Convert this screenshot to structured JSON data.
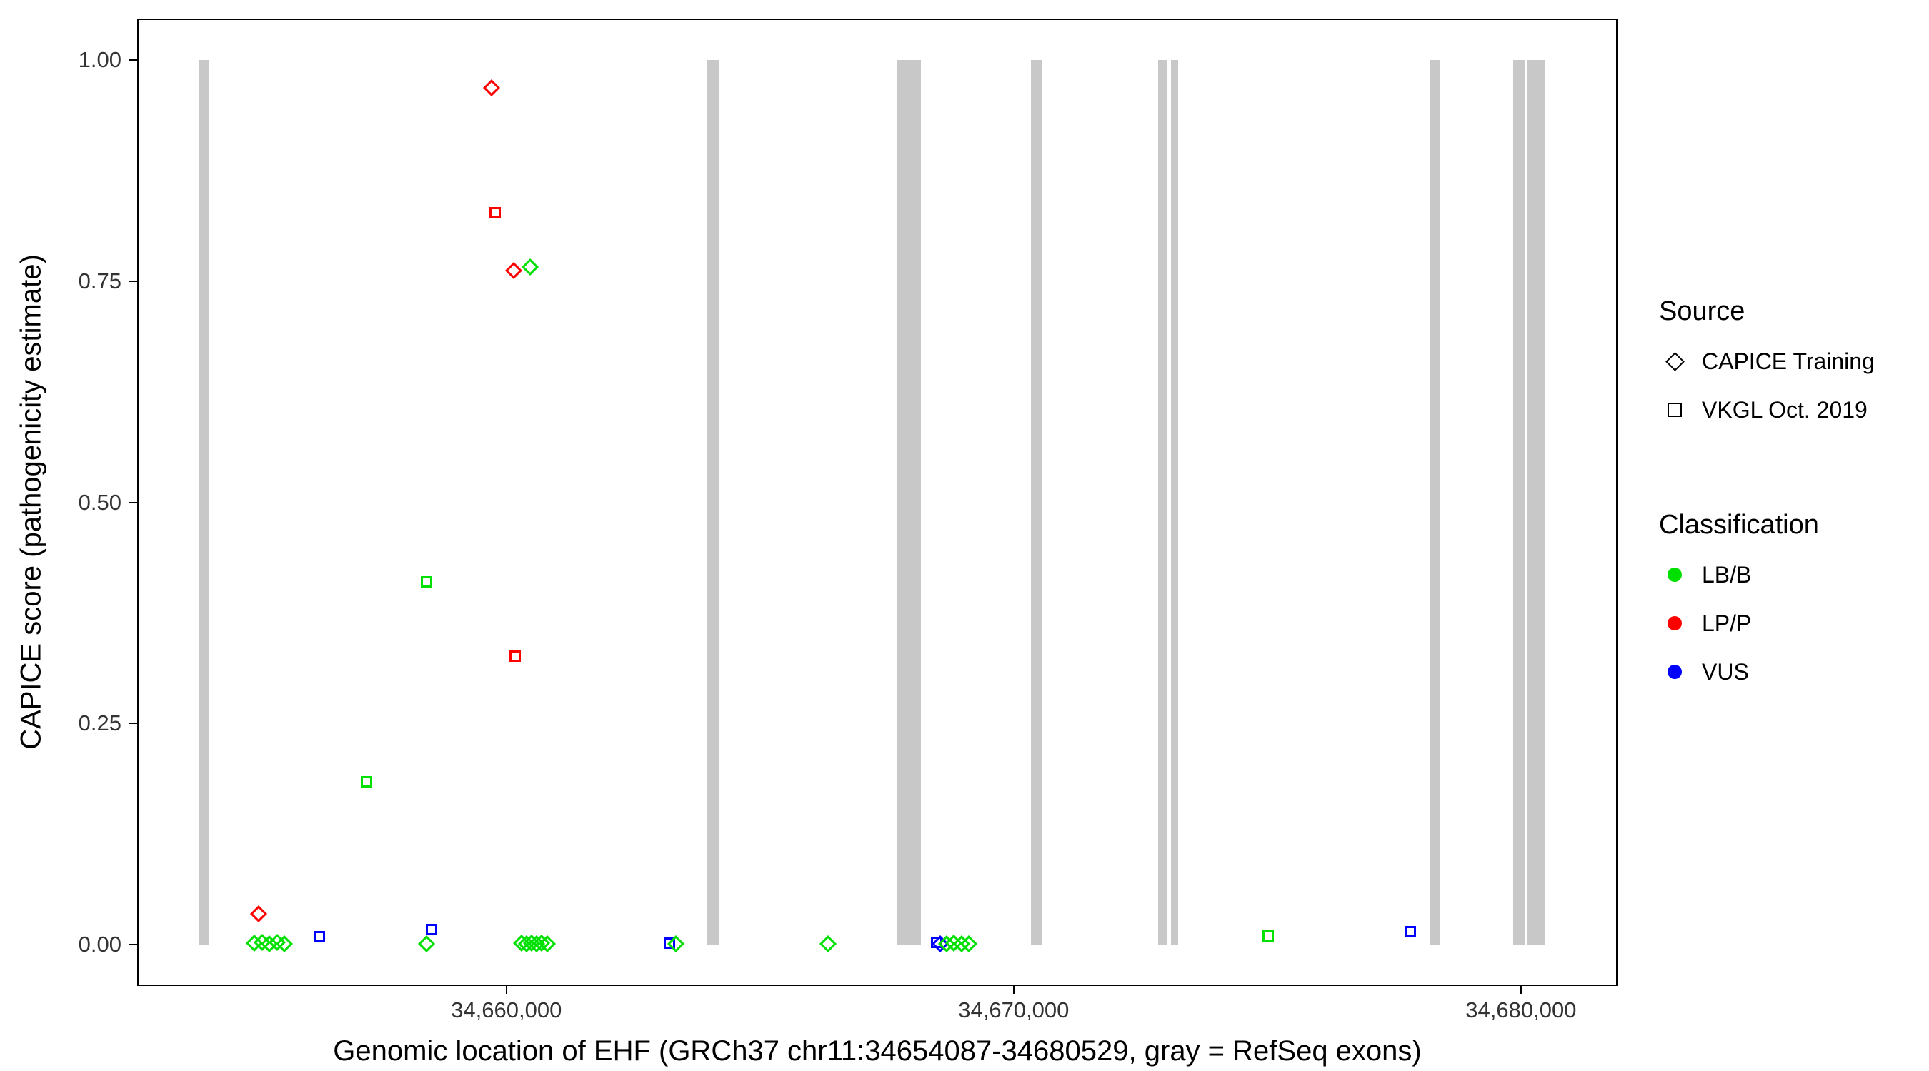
{
  "chart_data": {
    "type": "scatter",
    "title": "",
    "xlabel": "Genomic location of EHF (GRCh37 chr11:34654087-34680529, gray = RefSeq exons)",
    "ylabel": "CAPICE score (pathogenicity estimate)",
    "xlim": [
      34652750,
      34681875
    ],
    "ylim": [
      -0.045,
      1.045
    ],
    "grid": "off",
    "legend_position": "right",
    "x_ticks": [
      {
        "value": 34660000,
        "label": "34,660,000"
      },
      {
        "value": 34670000,
        "label": "34,670,000"
      },
      {
        "value": 34680000,
        "label": "34,680,000"
      }
    ],
    "y_ticks": [
      {
        "value": 0.0,
        "label": "0.00"
      },
      {
        "value": 0.25,
        "label": "0.25"
      },
      {
        "value": 0.5,
        "label": "0.50"
      },
      {
        "value": 0.75,
        "label": "0.75"
      },
      {
        "value": 1.0,
        "label": "1.00"
      }
    ],
    "exon_color": "#C8C8C8",
    "exons": [
      [
        34653930,
        34654130
      ],
      [
        34663955,
        34664200
      ],
      [
        34667700,
        34668170
      ],
      [
        34670340,
        34670545
      ],
      [
        34672850,
        34673025
      ],
      [
        34673095,
        34673245
      ],
      [
        34678205,
        34678405
      ],
      [
        34679850,
        34680075
      ],
      [
        34680125,
        34680470
      ]
    ],
    "legend": {
      "source": {
        "title": "Source",
        "items": [
          {
            "label": "CAPICE Training",
            "shape": "diamond"
          },
          {
            "label": "VKGL Oct. 2019",
            "shape": "square"
          }
        ]
      },
      "classification": {
        "title": "Classification",
        "items": [
          {
            "label": "LB/B",
            "color": "#00E000"
          },
          {
            "label": "LP/P",
            "color": "#FF0000"
          },
          {
            "label": "VUS",
            "color": "#0000FF"
          }
        ]
      }
    },
    "shape_by_source": {
      "CAPICE Training": "diamond",
      "VKGL Oct. 2019": "square"
    },
    "color_by_classification": {
      "LB/B": "#00E000",
      "LP/P": "#FF0000",
      "VUS": "#0000FF"
    },
    "points": [
      {
        "x": 34659705,
        "y": 0.968,
        "source": "CAPICE Training",
        "classification": "LP/P"
      },
      {
        "x": 34659780,
        "y": 0.827,
        "source": "VKGL Oct. 2019",
        "classification": "LP/P"
      },
      {
        "x": 34660147,
        "y": 0.762,
        "source": "CAPICE Training",
        "classification": "LP/P"
      },
      {
        "x": 34660467,
        "y": 0.766,
        "source": "CAPICE Training",
        "classification": "LB/B"
      },
      {
        "x": 34658428,
        "y": 0.41,
        "source": "VKGL Oct. 2019",
        "classification": "LB/B"
      },
      {
        "x": 34660172,
        "y": 0.326,
        "source": "VKGL Oct. 2019",
        "classification": "LP/P"
      },
      {
        "x": 34657248,
        "y": 0.184,
        "source": "VKGL Oct. 2019",
        "classification": "LB/B"
      },
      {
        "x": 34655110,
        "y": 0.035,
        "source": "CAPICE Training",
        "classification": "LP/P"
      },
      {
        "x": 34655035,
        "y": 0.002,
        "source": "CAPICE Training",
        "classification": "LB/B"
      },
      {
        "x": 34655185,
        "y": 0.003,
        "source": "CAPICE Training",
        "classification": "LB/B"
      },
      {
        "x": 34655330,
        "y": 0.001,
        "source": "CAPICE Training",
        "classification": "LB/B"
      },
      {
        "x": 34655480,
        "y": 0.003,
        "source": "CAPICE Training",
        "classification": "LB/B"
      },
      {
        "x": 34655625,
        "y": 0.001,
        "source": "CAPICE Training",
        "classification": "LB/B"
      },
      {
        "x": 34656315,
        "y": 0.009,
        "source": "VKGL Oct. 2019",
        "classification": "VUS"
      },
      {
        "x": 34658525,
        "y": 0.017,
        "source": "VKGL Oct. 2019",
        "classification": "VUS"
      },
      {
        "x": 34658430,
        "y": 0.001,
        "source": "CAPICE Training",
        "classification": "LB/B"
      },
      {
        "x": 34660295,
        "y": 0.002,
        "source": "CAPICE Training",
        "classification": "LB/B"
      },
      {
        "x": 34660395,
        "y": 0.001,
        "source": "CAPICE Training",
        "classification": "LB/B"
      },
      {
        "x": 34660490,
        "y": 0.002,
        "source": "CAPICE Training",
        "classification": "LB/B"
      },
      {
        "x": 34660590,
        "y": 0.001,
        "source": "CAPICE Training",
        "classification": "LB/B"
      },
      {
        "x": 34660690,
        "y": 0.002,
        "source": "CAPICE Training",
        "classification": "LB/B"
      },
      {
        "x": 34660810,
        "y": 0.001,
        "source": "CAPICE Training",
        "classification": "LB/B"
      },
      {
        "x": 34663220,
        "y": 0.002,
        "source": "VKGL Oct. 2019",
        "classification": "VUS"
      },
      {
        "x": 34663340,
        "y": 0.001,
        "source": "CAPICE Training",
        "classification": "LB/B"
      },
      {
        "x": 34666340,
        "y": 0.001,
        "source": "CAPICE Training",
        "classification": "LB/B"
      },
      {
        "x": 34668475,
        "y": 0.003,
        "source": "VKGL Oct. 2019",
        "classification": "VUS"
      },
      {
        "x": 34668550,
        "y": 0.001,
        "source": "CAPICE Training",
        "classification": "VUS"
      },
      {
        "x": 34668675,
        "y": 0.001,
        "source": "CAPICE Training",
        "classification": "LB/B"
      },
      {
        "x": 34668820,
        "y": 0.002,
        "source": "CAPICE Training",
        "classification": "LB/B"
      },
      {
        "x": 34668970,
        "y": 0.001,
        "source": "CAPICE Training",
        "classification": "LB/B"
      },
      {
        "x": 34669115,
        "y": 0.001,
        "source": "CAPICE Training",
        "classification": "LB/B"
      },
      {
        "x": 34675015,
        "y": 0.01,
        "source": "VKGL Oct. 2019",
        "classification": "LB/B"
      },
      {
        "x": 34677815,
        "y": 0.015,
        "source": "VKGL Oct. 2019",
        "classification": "VUS"
      }
    ]
  }
}
